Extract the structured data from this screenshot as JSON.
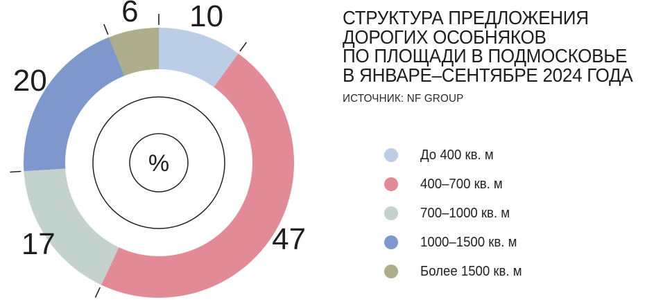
{
  "title": {
    "lines": [
      "СТРУКТУРА ПРЕДЛОЖЕНИЯ",
      "ДОРОГИХ ОСОБНЯКОВ",
      "ПО ПЛОЩАДИ В ПОДМОСКОВЬЕ",
      "В ЯНВАРЕ–СЕНТЯБРЕ 2024 ГОДА"
    ],
    "source": "ИСТОЧНИК: NF GROUP"
  },
  "chart_data": {
    "type": "pie",
    "variant": "donut",
    "center_label": "%",
    "categories": [
      "До 400 кв. м",
      "400–700 кв. м",
      "700–1000 кв. м",
      "1000–1500 кв. м",
      "Более 1500 кв. м"
    ],
    "values": [
      10,
      47,
      17,
      20,
      6
    ],
    "value_labels": [
      "10",
      "47",
      "17",
      "20",
      "6"
    ],
    "colors": [
      "#bccde6",
      "#e38a97",
      "#c3d2cc",
      "#7e97cd",
      "#aead8c"
    ],
    "start": "top, clockwise",
    "legend_position": "right"
  }
}
